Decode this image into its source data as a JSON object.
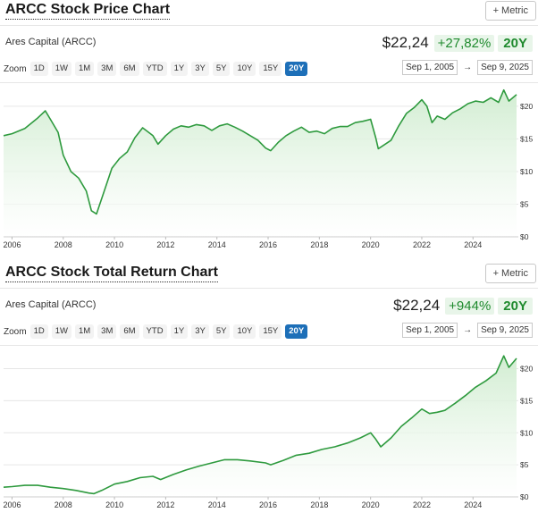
{
  "ui": {
    "metric_label": "+ Metric",
    "zoom_label": "Zoom",
    "zoom_buttons": [
      "1D",
      "1W",
      "1M",
      "3M",
      "6M",
      "YTD",
      "1Y",
      "3Y",
      "5Y",
      "10Y",
      "15Y",
      "20Y"
    ],
    "active_zoom": "20Y",
    "start_date": "Sep 1, 2005",
    "end_date": "Sep 9, 2025",
    "arrow": "→",
    "line_color": "#2e9a3e",
    "fill_color": "#e3f3e4"
  },
  "panels": [
    {
      "title": "ARCC Stock Price Chart",
      "subhead": "Ares Capital (ARCC)",
      "price": "$22,24",
      "change": "+27,82%",
      "period": "20Y"
    },
    {
      "title": "ARCC Stock Total Return Chart",
      "subhead": "Ares Capital (ARCC)",
      "price": "$22,24",
      "change": "+944%",
      "period": "20Y"
    }
  ],
  "chart_data": [
    {
      "type": "area",
      "title": "ARCC Stock Price Chart",
      "x_ticks": [
        "2006",
        "2008",
        "2010",
        "2012",
        "2014",
        "2016",
        "2018",
        "2020",
        "2022",
        "2024"
      ],
      "y_ticks": [
        "$0",
        "$5",
        "$10",
        "$15",
        "$20"
      ],
      "ylim": [
        0,
        23
      ],
      "x": [
        2005.67,
        2006.0,
        2006.5,
        2007.0,
        2007.3,
        2007.5,
        2007.8,
        2008.0,
        2008.3,
        2008.6,
        2008.9,
        2009.1,
        2009.3,
        2009.6,
        2009.9,
        2010.2,
        2010.5,
        2010.8,
        2011.1,
        2011.5,
        2011.7,
        2012.0,
        2012.3,
        2012.6,
        2012.9,
        2013.2,
        2013.5,
        2013.8,
        2014.1,
        2014.4,
        2014.7,
        2015.0,
        2015.3,
        2015.6,
        2015.9,
        2016.1,
        2016.4,
        2016.7,
        2017.0,
        2017.3,
        2017.6,
        2017.9,
        2018.2,
        2018.5,
        2018.8,
        2019.1,
        2019.4,
        2019.7,
        2020.0,
        2020.2,
        2020.3,
        2020.5,
        2020.8,
        2021.1,
        2021.4,
        2021.7,
        2022.0,
        2022.2,
        2022.4,
        2022.6,
        2022.9,
        2023.2,
        2023.5,
        2023.8,
        2024.1,
        2024.4,
        2024.7,
        2025.0,
        2025.2,
        2025.4,
        2025.7
      ],
      "y": [
        15.5,
        15.8,
        16.6,
        18.2,
        19.3,
        18.0,
        16.0,
        12.5,
        10.0,
        9.0,
        7.0,
        4.0,
        3.5,
        7.0,
        10.5,
        12.0,
        13.0,
        15.2,
        16.7,
        15.5,
        14.2,
        15.5,
        16.5,
        17.0,
        16.8,
        17.2,
        17.0,
        16.3,
        17.0,
        17.3,
        16.8,
        16.2,
        15.5,
        14.8,
        13.6,
        13.2,
        14.5,
        15.5,
        16.2,
        16.8,
        16.0,
        16.2,
        15.8,
        16.6,
        16.9,
        16.9,
        17.5,
        17.7,
        18.0,
        15.2,
        13.5,
        14.0,
        14.8,
        17.0,
        18.9,
        19.8,
        21.0,
        20.0,
        17.5,
        18.5,
        18.0,
        19.0,
        19.6,
        20.4,
        20.8,
        20.6,
        21.3,
        20.6,
        22.5,
        20.8,
        21.8
      ]
    },
    {
      "type": "area",
      "title": "ARCC Stock Total Return Chart",
      "x_ticks": [
        "2006",
        "2008",
        "2010",
        "2012",
        "2014",
        "2016",
        "2018",
        "2020",
        "2022",
        "2024"
      ],
      "y_ticks": [
        "$0",
        "$5",
        "$10",
        "$15",
        "$20"
      ],
      "ylim": [
        0,
        23
      ],
      "x": [
        2005.67,
        2006.0,
        2006.5,
        2007.0,
        2007.5,
        2008.0,
        2008.5,
        2009.0,
        2009.2,
        2009.5,
        2010.0,
        2010.5,
        2011.0,
        2011.5,
        2011.8,
        2012.3,
        2012.8,
        2013.3,
        2013.8,
        2014.3,
        2014.8,
        2015.3,
        2015.9,
        2016.1,
        2016.6,
        2017.1,
        2017.6,
        2018.1,
        2018.6,
        2019.1,
        2019.6,
        2020.0,
        2020.2,
        2020.4,
        2020.8,
        2021.2,
        2021.6,
        2022.0,
        2022.3,
        2022.6,
        2022.9,
        2023.3,
        2023.7,
        2024.1,
        2024.5,
        2024.9,
        2025.2,
        2025.4,
        2025.7
      ],
      "y": [
        1.5,
        1.6,
        1.8,
        1.8,
        1.5,
        1.3,
        1.0,
        0.6,
        0.5,
        1.0,
        2.0,
        2.4,
        3.0,
        3.2,
        2.7,
        3.5,
        4.2,
        4.8,
        5.3,
        5.8,
        5.8,
        5.6,
        5.3,
        5.0,
        5.7,
        6.5,
        6.8,
        7.4,
        7.8,
        8.4,
        9.2,
        10.0,
        9.0,
        7.8,
        9.2,
        11.0,
        12.3,
        13.7,
        13.0,
        13.2,
        13.5,
        14.6,
        15.8,
        17.1,
        18.1,
        19.3,
        22.0,
        20.2,
        21.6
      ]
    }
  ]
}
